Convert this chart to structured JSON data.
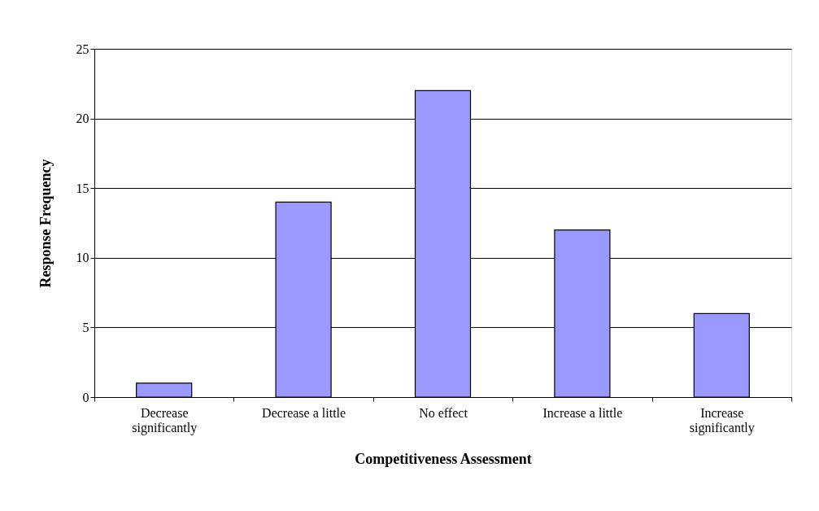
{
  "chart_data": {
    "type": "bar",
    "xlabel": "Competitiveness Assessment",
    "ylabel": "Response Frequency",
    "categories": [
      "Decrease significantly",
      "Decrease a little",
      "No effect",
      "Increase a little",
      "Increase significantly"
    ],
    "values": [
      1,
      14,
      22,
      12,
      6
    ],
    "color": "#9999ff",
    "ylim": [
      0,
      25
    ],
    "yticks": [
      0,
      5,
      10,
      15,
      20,
      25
    ],
    "grid": "y",
    "legend": false
  }
}
